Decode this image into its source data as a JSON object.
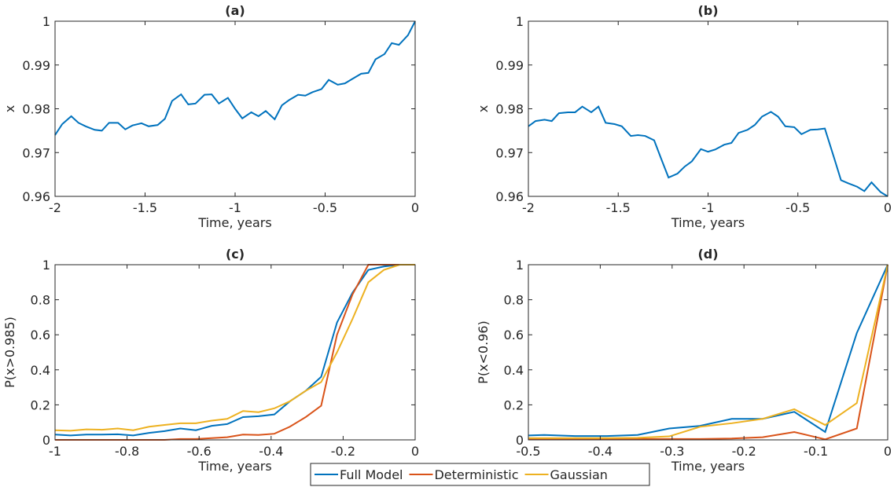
{
  "chart_data": [
    {
      "type": "line",
      "title": "(a)",
      "xlabel": "Time, years",
      "ylabel": "x",
      "x": [
        -2,
        -1.96,
        -1.91,
        -1.87,
        -1.83,
        -1.78,
        -1.74,
        -1.7,
        -1.65,
        -1.61,
        -1.57,
        -1.52,
        -1.48,
        -1.43,
        -1.39,
        -1.35,
        -1.3,
        -1.26,
        -1.22,
        -1.17,
        -1.13,
        -1.09,
        -1.04,
        -1,
        -0.96,
        -0.91,
        -0.87,
        -0.83,
        -0.78,
        -0.74,
        -0.7,
        -0.65,
        -0.61,
        -0.57,
        -0.52,
        -0.48,
        -0.43,
        -0.39,
        -0.35,
        -0.3,
        -0.26,
        -0.22,
        -0.17,
        -0.13,
        -0.09,
        -0.04,
        0
      ],
      "series": [
        {
          "color": "#0072BD",
          "values": [
            0.974,
            0.9765,
            0.9783,
            0.9768,
            0.976,
            0.9752,
            0.975,
            0.9768,
            0.9768,
            0.9753,
            0.9762,
            0.9767,
            0.976,
            0.9763,
            0.9777,
            0.9818,
            0.9833,
            0.981,
            0.9812,
            0.9832,
            0.9833,
            0.9812,
            0.9825,
            0.98,
            0.9778,
            0.9792,
            0.9783,
            0.9795,
            0.9776,
            0.9808,
            0.982,
            0.9832,
            0.983,
            0.9838,
            0.9845,
            0.9866,
            0.9855,
            0.9858,
            0.9868,
            0.988,
            0.9882,
            0.9913,
            0.9925,
            0.995,
            0.9946,
            0.9968,
            1.0
          ]
        }
      ],
      "xlim": [
        -2,
        0
      ],
      "xticks": [
        -2,
        -1.5,
        -1,
        -0.5,
        0
      ],
      "ylim": [
        0.96,
        1
      ],
      "yticks": [
        0.96,
        0.97,
        0.98,
        0.99,
        1
      ]
    },
    {
      "type": "line",
      "title": "(b)",
      "xlabel": "Time, years",
      "ylabel": "x",
      "x": [
        -2,
        -1.96,
        -1.91,
        -1.87,
        -1.83,
        -1.78,
        -1.74,
        -1.7,
        -1.65,
        -1.61,
        -1.57,
        -1.52,
        -1.48,
        -1.43,
        -1.39,
        -1.35,
        -1.3,
        -1.26,
        -1.22,
        -1.17,
        -1.13,
        -1.09,
        -1.04,
        -1,
        -0.96,
        -0.91,
        -0.87,
        -0.83,
        -0.78,
        -0.74,
        -0.7,
        -0.65,
        -0.61,
        -0.57,
        -0.52,
        -0.48,
        -0.43,
        -0.39,
        -0.35,
        -0.3,
        -0.26,
        -0.22,
        -0.17,
        -0.13,
        -0.09,
        -0.04,
        0
      ],
      "series": [
        {
          "color": "#0072BD",
          "values": [
            0.976,
            0.9772,
            0.9775,
            0.9772,
            0.979,
            0.9792,
            0.9792,
            0.9805,
            0.9792,
            0.9805,
            0.9768,
            0.9765,
            0.976,
            0.9738,
            0.974,
            0.9738,
            0.9728,
            0.9685,
            0.9643,
            0.9652,
            0.9668,
            0.968,
            0.9708,
            0.9702,
            0.9707,
            0.9718,
            0.9722,
            0.9745,
            0.9752,
            0.9763,
            0.9782,
            0.9793,
            0.9782,
            0.976,
            0.9758,
            0.9742,
            0.9752,
            0.9753,
            0.9755,
            0.969,
            0.9637,
            0.963,
            0.9622,
            0.9612,
            0.9632,
            0.961,
            0.96
          ]
        }
      ],
      "xlim": [
        -2,
        0
      ],
      "xticks": [
        -2,
        -1.5,
        -1,
        -0.5,
        0
      ],
      "ylim": [
        0.96,
        1
      ],
      "yticks": [
        0.96,
        0.97,
        0.98,
        0.99,
        1
      ]
    },
    {
      "type": "line",
      "title": "(c)",
      "xlabel": "Time, years",
      "ylabel": "P(x>0.985)",
      "x": [
        -1,
        -0.957,
        -0.913,
        -0.87,
        -0.826,
        -0.783,
        -0.739,
        -0.696,
        -0.652,
        -0.609,
        -0.565,
        -0.522,
        -0.478,
        -0.435,
        -0.391,
        -0.348,
        -0.304,
        -0.261,
        -0.217,
        -0.174,
        -0.13,
        -0.087,
        -0.043,
        0
      ],
      "series": [
        {
          "name": "Full Model",
          "color": "#0072BD",
          "values": [
            0.03,
            0.025,
            0.03,
            0.03,
            0.032,
            0.025,
            0.04,
            0.05,
            0.065,
            0.055,
            0.08,
            0.09,
            0.13,
            0.135,
            0.145,
            0.22,
            0.28,
            0.36,
            0.67,
            0.84,
            0.97,
            0.99,
            1,
            1
          ]
        },
        {
          "name": "Deterministic",
          "color": "#D95319",
          "values": [
            0,
            0,
            0,
            0,
            0,
            0,
            0,
            0,
            0.005,
            0.005,
            0.01,
            0.015,
            0.03,
            0.028,
            0.035,
            0.075,
            0.13,
            0.195,
            0.6,
            0.83,
            1,
            1,
            1,
            1
          ]
        },
        {
          "name": "Gaussian",
          "color": "#EDB120",
          "values": [
            0.055,
            0.052,
            0.06,
            0.058,
            0.065,
            0.055,
            0.075,
            0.085,
            0.095,
            0.095,
            0.11,
            0.12,
            0.165,
            0.158,
            0.18,
            0.22,
            0.28,
            0.33,
            0.5,
            0.69,
            0.9,
            0.97,
            1,
            1
          ]
        }
      ],
      "xlim": [
        -1,
        0
      ],
      "xticks": [
        -1,
        -0.8,
        -0.6,
        -0.4,
        -0.2,
        0
      ],
      "ylim": [
        0,
        1
      ],
      "yticks": [
        0,
        0.2,
        0.4,
        0.6,
        0.8,
        1
      ]
    },
    {
      "type": "line",
      "title": "(d)",
      "xlabel": "Time, years",
      "ylabel": "P(x<0.96)",
      "x": [
        -0.5,
        -0.478,
        -0.435,
        -0.391,
        -0.348,
        -0.304,
        -0.261,
        -0.217,
        -0.174,
        -0.13,
        -0.087,
        -0.043,
        0
      ],
      "series": [
        {
          "color": "#0072BD",
          "values": [
            0.025,
            0.028,
            0.022,
            0.022,
            0.028,
            0.065,
            0.08,
            0.12,
            0.12,
            0.16,
            0.045,
            0.61,
            1
          ]
        },
        {
          "color": "#D95319",
          "values": [
            0.005,
            0.005,
            0.005,
            0.005,
            0.005,
            0.005,
            0.005,
            0.008,
            0.015,
            0.045,
            0.003,
            0.065,
            1
          ]
        },
        {
          "color": "#EDB120",
          "values": [
            0.01,
            0.01,
            0.01,
            0.01,
            0.012,
            0.02,
            0.075,
            0.095,
            0.12,
            0.175,
            0.085,
            0.21,
            1
          ]
        }
      ],
      "xlim": [
        -0.5,
        0
      ],
      "xticks": [
        -0.5,
        -0.4,
        -0.3,
        -0.2,
        -0.1,
        0
      ],
      "ylim": [
        0,
        1
      ],
      "yticks": [
        0,
        0.2,
        0.4,
        0.6,
        0.8,
        1
      ]
    }
  ]
}
